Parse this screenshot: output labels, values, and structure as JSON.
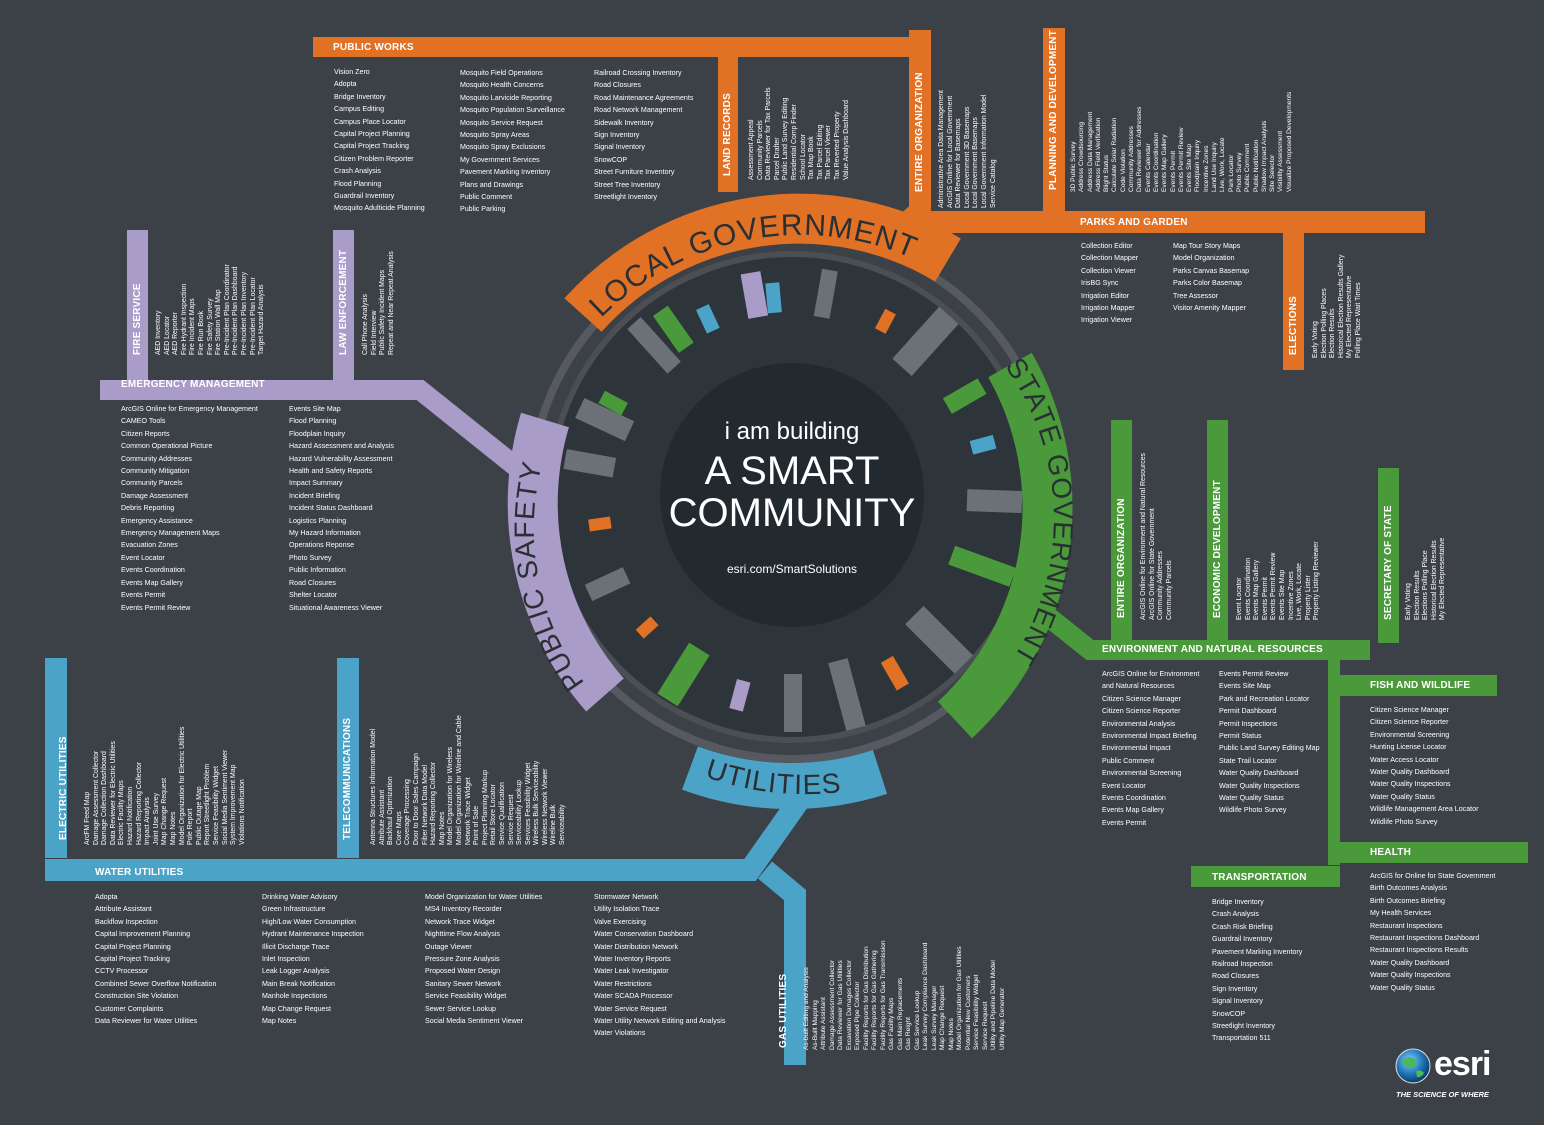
{
  "center": {
    "line1": "i am building",
    "line2": "A SMART",
    "line3": "COMMUNITY",
    "url": "esri.com/SmartSolutions"
  },
  "ring": {
    "local": "LOCAL GOVERNMENT",
    "state": "STATE GOVERNMENT",
    "utilities": "UTILITIES",
    "safety": "PUBLIC SAFETY"
  },
  "colors": {
    "background": "#3b4147",
    "local_government": "#e07125",
    "state_government": "#4a9a3c",
    "utilities": "#4ba3c7",
    "public_safety": "#a99cc8",
    "center_circle": "#222a30"
  },
  "logo": {
    "name": "esri",
    "tagline": "THE SCIENCE OF WHERE",
    "icon": "globe-icon"
  },
  "sections": {
    "public_works": {
      "title": "PUBLIC WORKS",
      "col1": [
        "Vision Zero",
        "Adopta",
        "Bridge Inventory",
        "Campus Editing",
        "Campus Place Locator",
        "Capital Project Planning",
        "Capital Project Tracking",
        "Citizen Problem Reporter",
        "Crash Analysis",
        "Flood Planning",
        "Guardrail Inventory",
        "Mosquito Adulticide Planning"
      ],
      "col2": [
        "Mosquito Field Operations",
        "Mosquito Health Concerns",
        "Mosquito Larvicide Reporting",
        "Mosquito Population Surveillance",
        "Mosquito Service Request",
        "Mosquito Spray Areas",
        "Mosquito Spray Exclusions",
        "My Government Services",
        "Pavement Marking Inventory",
        "Plans and Drawings",
        "Public Comment",
        "Public Parking"
      ],
      "col3": [
        "Railroad Crossing Inventory",
        "Road Closures",
        "Road Maintenance Agreements",
        "Road Network Management",
        "Sidewalk Inventory",
        "Sign Inventory",
        "Signal Inventory",
        "SnowCOP",
        "Street Furniture Inventory",
        "Street Tree Inventory",
        "Streetlight Inventory"
      ]
    },
    "land_records": {
      "title": "LAND RECORDS",
      "items": [
        "Assessment Appeal",
        "Community Parcels",
        "Data Reviewer for Tax Parcels",
        "Parcel Drafter",
        "Public Land Survey Editing",
        "Residential Comp Finder",
        "School Locator",
        "Tax Map Book",
        "Tax Parcel Editing",
        "Tax Parcel Viewer",
        "Tax Reverted Property",
        "Value Analysis Dashboard"
      ]
    },
    "entire_org_local": {
      "title": "ENTIRE ORGANIZATION",
      "items": [
        "Administrative Area Data Management",
        "ArcGIS Online for Local Government",
        "Data Reviewer for Basemaps",
        "Local Government 3D Basemaps",
        "Local Government Basemaps",
        "Local Government Information Model",
        "Service Catalog"
      ]
    },
    "planning": {
      "title": "PLANNING AND DEVELOPMENT",
      "items": [
        "3D Public Survey",
        "Address Crowdsourcing",
        "Address Data Management",
        "Address Field Verification",
        "Blight Status",
        "Calculate Solar Radiation",
        "Code Violation",
        "Community Addresses",
        "Data Reviewer for Addresses",
        "Events Calendar",
        "Events Coordination",
        "Events Map Gallery",
        "Events Permit",
        "Events Permit Review",
        "Events Site Map",
        "Floodplain Inquiry",
        "Incentive Zones",
        "Land Use Inquiry",
        "Live, Work, Locate",
        "Park Locator",
        "Photo Survey",
        "Public Comment",
        "Public Notification",
        "Shadow Impact Analysis",
        "Site Selector",
        "Visibility Assessment",
        "Visualize Proposed Developments"
      ]
    },
    "parks": {
      "title": "PARKS AND GARDEN",
      "col1": [
        "Collection Editor",
        "Collection Mapper",
        "Collection Viewer",
        "IrisBG Sync",
        "Irrigation Editor",
        "Irrigation Mapper",
        "Irrigation Viewer"
      ],
      "col2": [
        "Map Tour Story Maps",
        "Model Organization",
        "Parks Canvas Basemap",
        "Parks Color Basemap",
        "Tree Assessor",
        "Visitor Amenity Mapper"
      ]
    },
    "elections": {
      "title": "ELECTIONS",
      "items": [
        "Early Voting",
        "Election Polling Places",
        "Election Results",
        "Historical Election Results Gallery",
        "My Elected Representative",
        "Polling Place Wait Times"
      ]
    },
    "fire": {
      "title": "FIRE SERVICE",
      "items": [
        "AED Inventory",
        "AED Locator",
        "AED Reporter",
        "Fire Hydrant Inspection",
        "Fire Incident Maps",
        "Fire Run Book",
        "Fire Safety Survey",
        "Fire Station Wall Map",
        "Pre-Incident Plan Coordinator",
        "Pre-Incident Plan Dashboard",
        "Pre-Incident Plan Inventory",
        "Pre-Incident Plan Locator",
        "Target Hazard Analysis"
      ]
    },
    "law": {
      "title": "LAW ENFORCEMENT",
      "items": [
        "Call Phone Analysis",
        "Field Interview",
        "Public Safety Incident Maps",
        "Repeat and Near Repeat Analysis"
      ]
    },
    "emergency": {
      "title": "EMERGENCY MANAGEMENT",
      "col1": [
        "ArcGIS Online for Emergency Management",
        "CAMEO Tools",
        "Citizen Reports",
        "Common Operational Picture",
        "Community Addresses",
        "Community Mitigation",
        "Community Parcels",
        "Damage Assessment",
        "Debris Reporting",
        "Emergency Assistance",
        "Emergency Management Maps",
        "Evacuation Zones",
        "Event Locator",
        "Events Coordination",
        "Events Map Gallery",
        "Events Permit",
        "Events Permit Review"
      ],
      "col2": [
        "Events Site Map",
        "Flood Planning",
        "Floodplain Inquiry",
        "Hazard Assessment and Analysis",
        "Hazard Vulnerability Assessment",
        "Health and Safety Reports",
        "Impact Summary",
        "Incident Briefing",
        "Incident Status Dashboard",
        "Logistics Planning",
        "My Hazard Information",
        "Operations Reponse",
        "Photo Survey",
        "Public Information",
        "Road Closures",
        "Shelter Locator",
        "Situational Awareness Viewer"
      ]
    },
    "entire_org_state": {
      "title": "ENTIRE ORGANIZATION",
      "items": [
        "ArcGIS Online for Environment and Natural Resources",
        "ArcGIS Online for State Government",
        "Community Addresses",
        "Community Parcels"
      ]
    },
    "economic": {
      "title": "ECONOMIC DEVELOPMENT",
      "items": [
        "Event Locator",
        "Events Coordination",
        "Events Map Gallery",
        "Events Permit",
        "Events Permit Review",
        "Events Site Map",
        "Incentive Zones",
        "Live, Work, Locate",
        "Property Lister",
        "Property Listing Reviewer"
      ]
    },
    "secretary": {
      "title": "SECRETARY OF STATE",
      "items": [
        "Early Voting",
        "Election Results",
        "Elections Polling Place",
        "Historical Election Results",
        "My Elected Representative"
      ]
    },
    "enr": {
      "title": "ENVIRONMENT AND NATURAL RESOURCES",
      "col1": [
        "ArcGIS Online for Environment",
        "and Natural Resources",
        "Citizen Science Manager",
        "Citizen Science Reporter",
        "Environmental Analysis",
        "Environmental Impact Briefing",
        "Environmental Impact",
        "Public Comment",
        "Environmental Screening",
        "Event Locator",
        "Events Coordination",
        "Events Map Gallery",
        "Events Permit"
      ],
      "col2": [
        "Events Permit Review",
        "Events Site Map",
        "Park and Recreation Locator",
        "Permit Dashboard",
        "Permit Inspections",
        "Permit Status",
        "Public Land Survey Editing Map",
        "State Trail Locator",
        "Water Quality Dashboard",
        "Water Quality Inspections",
        "Water Quality Status",
        "Wildlife Photo Survey"
      ]
    },
    "fish": {
      "title": "FISH AND WILDLIFE",
      "items": [
        "Citizen Science Manager",
        "Citizen Science Reporter",
        "Environmental Screening",
        "Hunting License Locator",
        "Water Access Locator",
        "Water Quality Dashboard",
        "Water Quality Inspections",
        "Water Quality Status",
        "Wildlife Management Area Locator",
        "Wildlife Photo Survey"
      ]
    },
    "health": {
      "title": "HEALTH",
      "items": [
        "ArcGIS for Online for State Government",
        "Birth Outcomes Analysis",
        "Birth Outcomes Briefing",
        "My Health Services",
        "Restaurant Inspections",
        "Restaurant Inspections Dashboard",
        "Restaurant Inspections Results",
        "Water Quality Dashboard",
        "Water Quality Inspections",
        "Water Quality Status"
      ]
    },
    "transportation": {
      "title": "TRANSPORTATION",
      "items": [
        "Bridge Inventory",
        "Crash Analysis",
        "Crash Risk Briefing",
        "Guardrail Inventory",
        "Pavement Marking Inventory",
        "Railroad Inspection",
        "Road Closures",
        "Sign Inventory",
        "Signal Inventory",
        "SnowCOP",
        "Streetlight Inventory",
        "Transportation 511"
      ]
    },
    "electric": {
      "title": "ELECTRIC UTILITIES",
      "items": [
        "ArcFM Feed Map",
        "Damage Assessment Collector",
        "Damage Collection Dashboard",
        "Data Reviewer for Electric Utilities",
        "Electric Facility Maps",
        "Hazard Notification",
        "Hazard Reporting Collector",
        "Impact Analysis",
        "Joint Use Survey",
        "Map Change Request",
        "Map Notes",
        "Model Organization for Electric Utilities",
        "Pole Report",
        "Public Outage Map",
        "Report Streetlight Problem",
        "Service Feasibility Widget",
        "Social Media Sentiment Viewer",
        "System Improvement Map",
        "Violations Notification"
      ]
    },
    "telecom": {
      "title": "TELECOMMUNICATIONS",
      "items": [
        "Antenna Structures Information Model",
        "Attribute Assistant",
        "Backhaul Optimization",
        "Core Maps",
        "Coverage Processing",
        "Door to Door Sales Campaign",
        "Fiber Network Data Model",
        "Hazard Reporting Collector",
        "Map Notes",
        "Model Organization for Wireless",
        "Model Organization for Wireline and Cable",
        "Network Trace Widget",
        "Point of Sale",
        "Project Planning Markup",
        "Retail Store Locator",
        "Service Qualification",
        "Service Request",
        "Serviceability Lookup",
        "Services Feasibility Widget",
        "Wireless Bulk Serviceability",
        "Wireless Network Viewer",
        "Wireline Bulk",
        "Serviceability"
      ]
    },
    "water": {
      "title": "WATER UTILITIES",
      "col1": [
        "Adopta",
        "Attribute Assistant",
        "Backflow Inspection",
        "Capital Improvement Planning",
        "Capital Project Planning",
        "Capital Project Tracking",
        "CCTV Processor",
        "Combined Sewer Overflow Notification",
        "Construction Site Violation",
        "Customer Complaints",
        "Data Reviewer for Water Utilities"
      ],
      "col2": [
        "Drinking Water Advisory",
        "Green Infrastructure",
        "High/Low Water Consumption",
        "Hydrant Maintenance Inspection",
        "Illicit Discharge Trace",
        "Inlet Inspection",
        "Leak Logger Analysis",
        "Main Break Notification",
        "Manhole Inspections",
        "Map Change Request",
        "Map Notes"
      ],
      "col3": [
        "Model Organization for Water Utilities",
        "MS4 Inventory Recorder",
        "Network Trace Widget",
        "Nighttime Flow Analysis",
        "Outage Viewer",
        "Pressure Zone Analysis",
        "Proposed Water Design",
        "Sanitary Sewer Network",
        "Service Feasibility Widget",
        "Sewer Service Lookup",
        "Social Media Sentiment Viewer"
      ],
      "col4": [
        "Stormwater Network",
        "Utility Isolation Trace",
        "Valve Exercising",
        "Water Conservation Dashboard",
        "Water Distribution Network",
        "Water Inventory Reports",
        "Water Leak Investigator",
        "Water Restrictions",
        "Water SCADA Processor",
        "Water Service Request",
        "Water Utility Network Editing and Analysis",
        "Water Violations"
      ]
    },
    "gas": {
      "title": "GAS UTILITIES",
      "items": [
        "As-built Editing and Analysis",
        "As-Built Mapping",
        "Attribute Assistant",
        "Damage Assessment Collector",
        "Data Reviewer for Gas Utilities",
        "Excavation Damages Collector",
        "Exposed Pipe Collector",
        "Facility Reports for Gas Distribution",
        "Facility Reports for Gas Gathering",
        "Facility Reports for Gas Transmission",
        "Gas Facility Maps",
        "Gas Main Replacements",
        "Gas Reight",
        "Gas Service Lookup",
        "Leak Survey Compliance Dashboard",
        "Leak Survey Manager",
        "Map Change Request",
        "Map Notes",
        "Model Organization for Gas Utilities",
        "Potential New Customers",
        "Service Feasibility Widget",
        "Service Request",
        "Utility and Pipeline Data Model",
        "Utility Map Generator"
      ]
    }
  }
}
